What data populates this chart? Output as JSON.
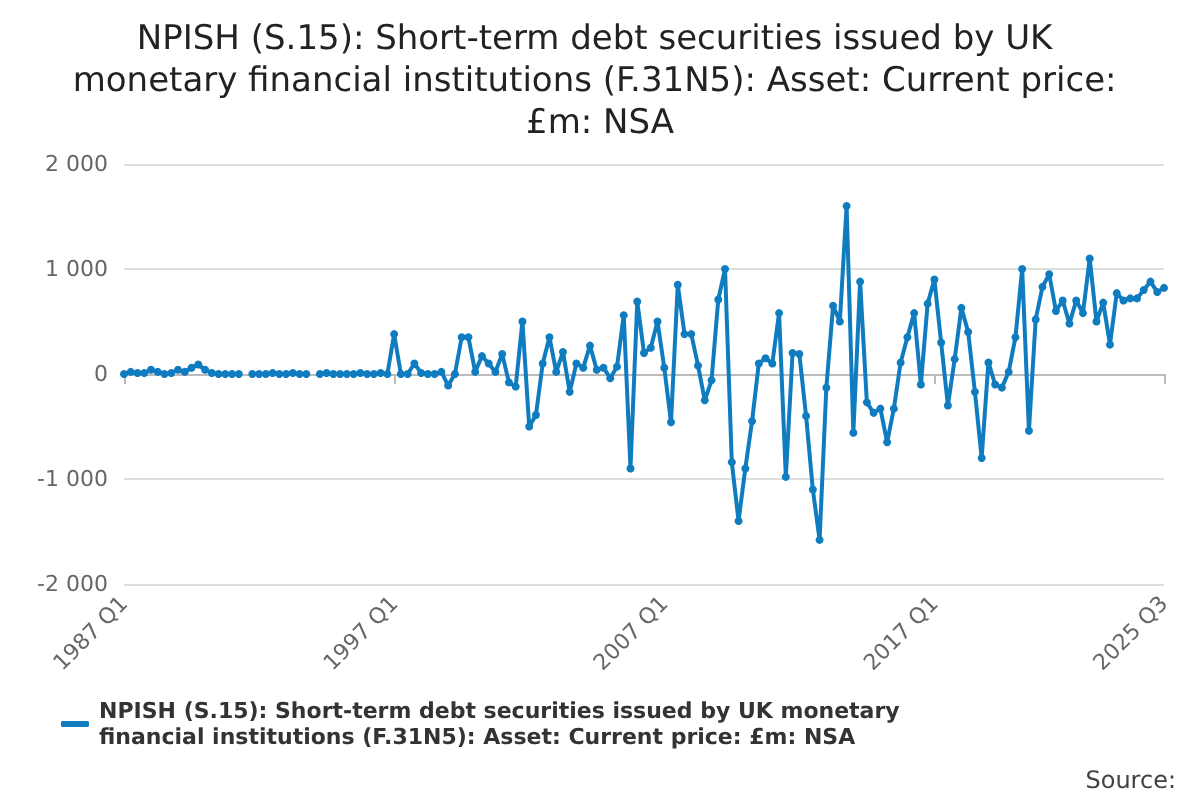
{
  "chart_data": {
    "type": "line",
    "title": "NPISH (S.15): Short-term debt securities issued by UK monetary financial institutions (F.31N5): Asset: Current price: £m: NSA",
    "categories": [
      "1987 Q1",
      null,
      null,
      null,
      null,
      null,
      null,
      null,
      null,
      null,
      null,
      null,
      null,
      null,
      null,
      null,
      null,
      null,
      null,
      null,
      null,
      null,
      null,
      null,
      null,
      null,
      null,
      null,
      null,
      null,
      null,
      null,
      null,
      null,
      null,
      null,
      null,
      null,
      null,
      null,
      "1997 Q1",
      null,
      null,
      null,
      null,
      null,
      null,
      null,
      null,
      null,
      null,
      null,
      null,
      null,
      null,
      null,
      null,
      null,
      null,
      null,
      null,
      null,
      null,
      null,
      null,
      null,
      null,
      null,
      null,
      null,
      null,
      null,
      null,
      null,
      null,
      null,
      null,
      null,
      null,
      null,
      "2007 Q1",
      null,
      null,
      null,
      null,
      null,
      null,
      null,
      null,
      null,
      null,
      null,
      null,
      null,
      null,
      null,
      null,
      null,
      null,
      null,
      null,
      null,
      null,
      null,
      null,
      null,
      null,
      null,
      null,
      null,
      null,
      null,
      null,
      null,
      null,
      null,
      null,
      null,
      null,
      null,
      "2017 Q1",
      null,
      null,
      null,
      null,
      null,
      null,
      null,
      null,
      null,
      null,
      null,
      null,
      null,
      null,
      null,
      null,
      null,
      null,
      null,
      null,
      null,
      null,
      null,
      null,
      null,
      null,
      null,
      null,
      null,
      null,
      null,
      null,
      null,
      "2025 Q3"
    ],
    "series": [
      {
        "name": "NPISH (S.15): Short-term debt securities issued by UK monetary financial institutions (F.31N5): Asset: Current price: £m: NSA",
        "color": "#0f7cc0",
        "values": [
          0,
          20,
          10,
          10,
          40,
          20,
          0,
          10,
          40,
          20,
          60,
          90,
          40,
          10,
          0,
          0,
          0,
          0,
          null,
          0,
          0,
          0,
          10,
          0,
          0,
          10,
          0,
          0,
          null,
          0,
          10,
          0,
          0,
          0,
          0,
          10,
          0,
          0,
          10,
          0,
          380,
          0,
          0,
          100,
          10,
          0,
          0,
          20,
          -110,
          0,
          350,
          350,
          20,
          170,
          100,
          20,
          190,
          -80,
          -120,
          500,
          -500,
          -390,
          100,
          350,
          20,
          210,
          -170,
          100,
          60,
          270,
          40,
          60,
          -40,
          70,
          560,
          -900,
          690,
          200,
          250,
          500,
          60,
          -460,
          850,
          380,
          380,
          80,
          -250,
          -60,
          710,
          1000,
          -840,
          -1400,
          -900,
          -450,
          100,
          150,
          100,
          580,
          -980,
          200,
          190,
          -400,
          -1100,
          -1580,
          -130,
          650,
          500,
          1600,
          -560,
          880,
          -270,
          -370,
          -330,
          -650,
          -330,
          110,
          350,
          580,
          -100,
          670,
          900,
          300,
          -300,
          140,
          630,
          400,
          -170,
          -800,
          110,
          -100,
          -130,
          20,
          350,
          1000,
          -540,
          520,
          830,
          950,
          600,
          700,
          480,
          700,
          580,
          1100,
          500,
          680,
          280,
          770,
          700,
          720,
          720,
          800,
          880,
          780,
          820
        ]
      }
    ],
    "ylim": [
      -2000,
      2000
    ],
    "yticks": [
      {
        "value": -2000,
        "label": "-2 000"
      },
      {
        "value": -1000,
        "label": "-1 000"
      },
      0,
      {
        "value": 1000,
        "label": "1 000"
      },
      {
        "value": 2000,
        "label": "2 000"
      }
    ],
    "grid": "y",
    "marker": "circle",
    "line_style": "solid",
    "legend": "bottom",
    "annotations": [
      "Source:"
    ]
  }
}
